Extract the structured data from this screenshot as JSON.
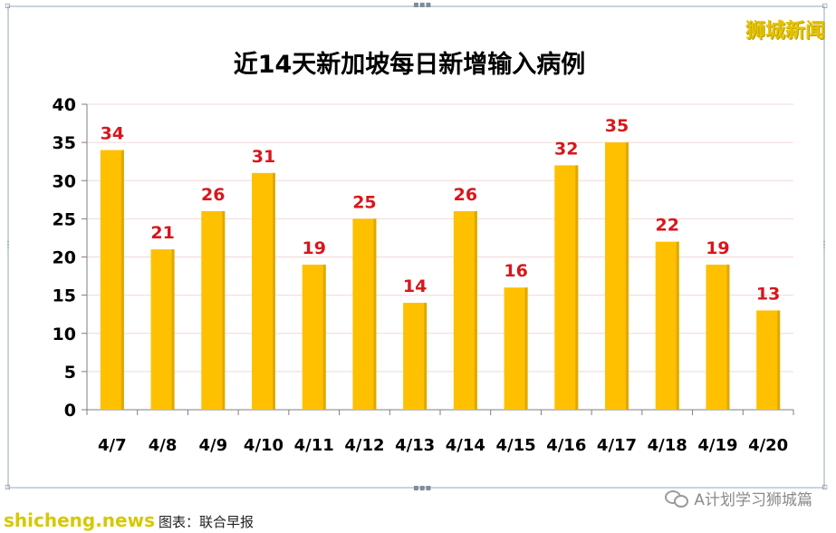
{
  "watermark": "狮城新闻",
  "footer": {
    "brand": "shicheng.news",
    "source": "图表：联合早报",
    "account": "A计划学习狮城篇"
  },
  "chart_data": {
    "type": "bar",
    "title": "近14天新加坡每日新增输入病例",
    "xlabel": "",
    "ylabel": "",
    "categories": [
      "4/7",
      "4/8",
      "4/9",
      "4/10",
      "4/11",
      "4/12",
      "4/13",
      "4/14",
      "4/15",
      "4/16",
      "4/17",
      "4/18",
      "4/19",
      "4/20"
    ],
    "values": [
      34,
      21,
      26,
      31,
      19,
      25,
      14,
      26,
      16,
      32,
      35,
      22,
      19,
      13
    ],
    "ylim": [
      0,
      40
    ],
    "yticks": [
      0,
      5,
      10,
      15,
      20,
      25,
      30,
      35,
      40
    ],
    "grid": true,
    "legend": "none",
    "colors": {
      "bar": "#ffc000",
      "bar_shade": "#e0a800",
      "data_label": "#d9161c",
      "grid": "#f3d8d8",
      "axis": "#7f7f7f",
      "text": "#000000"
    }
  }
}
